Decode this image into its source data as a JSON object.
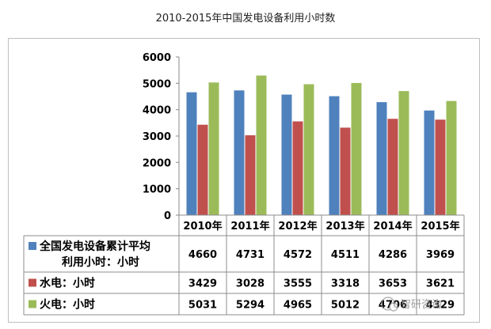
{
  "title": "2010-2015年中国发电设备利用小时数",
  "watermark": "智研咨询",
  "chart_data": {
    "type": "bar",
    "categories": [
      "2010年",
      "2011年",
      "2012年",
      "2013年",
      "2014年",
      "2015年"
    ],
    "ylim": [
      0,
      6000
    ],
    "yticks": [
      0,
      1000,
      2000,
      3000,
      4000,
      5000,
      6000
    ],
    "grid": false,
    "legend": "data-table",
    "series": [
      {
        "name": "全国发电设备累计平均利用小时：小时",
        "name_lines": [
          "全国发电设备累计平均",
          "利用小时：小时"
        ],
        "color": "#4F81BD",
        "values": [
          4660,
          4731,
          4572,
          4511,
          4286,
          3969
        ]
      },
      {
        "name": "水电：小时",
        "name_lines": [
          "水电：小时"
        ],
        "color": "#C0504D",
        "values": [
          3429,
          3028,
          3555,
          3318,
          3653,
          3621
        ]
      },
      {
        "name": "火电：小时",
        "name_lines": [
          "火电：小时"
        ],
        "color": "#9BBB59",
        "values": [
          5031,
          5294,
          4965,
          5012,
          4706,
          4329
        ]
      }
    ]
  }
}
